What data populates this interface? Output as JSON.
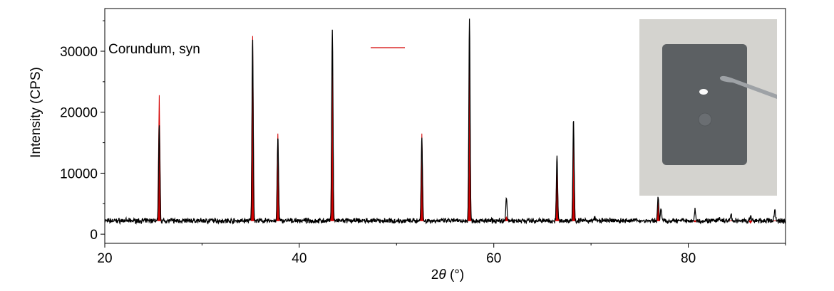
{
  "chart_data": {
    "type": "line",
    "xlabel_prefix": "2",
    "xlabel_symbol": "θ",
    "xlabel_unit": " (°)",
    "ylabel": "Intensity (CPS)",
    "xlim": [
      20,
      90
    ],
    "ylim": [
      -1500,
      37000
    ],
    "x_ticks": [
      20,
      40,
      60,
      80
    ],
    "y_ticks": [
      0,
      10000,
      20000,
      30000
    ],
    "grid": false,
    "legend": {
      "label": "Corundum, syn",
      "color": "#d40000",
      "position": "top-left"
    },
    "baseline": 2200,
    "noise_amplitude": 500,
    "measured_peaks": [
      {
        "x": 25.6,
        "y": 18000
      },
      {
        "x": 35.2,
        "y": 32000
      },
      {
        "x": 37.8,
        "y": 16000
      },
      {
        "x": 43.4,
        "y": 33500
      },
      {
        "x": 52.6,
        "y": 16000
      },
      {
        "x": 57.5,
        "y": 35300
      },
      {
        "x": 61.3,
        "y": 6000
      },
      {
        "x": 66.5,
        "y": 12800
      },
      {
        "x": 68.2,
        "y": 18800
      },
      {
        "x": 70.4,
        "y": 2800
      },
      {
        "x": 74.3,
        "y": 2500
      },
      {
        "x": 76.9,
        "y": 6300
      },
      {
        "x": 77.2,
        "y": 4300
      },
      {
        "x": 80.7,
        "y": 4000
      },
      {
        "x": 83.2,
        "y": 2600
      },
      {
        "x": 84.4,
        "y": 3200
      },
      {
        "x": 86.4,
        "y": 2900
      },
      {
        "x": 88.9,
        "y": 4100
      }
    ],
    "reference_peaks": [
      {
        "x": 25.6,
        "y": 22800
      },
      {
        "x": 35.2,
        "y": 32500
      },
      {
        "x": 37.8,
        "y": 16500
      },
      {
        "x": 43.4,
        "y": 31500
      },
      {
        "x": 52.6,
        "y": 16500
      },
      {
        "x": 57.5,
        "y": 29500
      },
      {
        "x": 61.3,
        "y": 2800
      },
      {
        "x": 66.5,
        "y": 11500
      },
      {
        "x": 68.2,
        "y": 16500
      },
      {
        "x": 76.9,
        "y": 5200
      },
      {
        "x": 80.7,
        "y": 2000
      },
      {
        "x": 84.4,
        "y": 2200
      },
      {
        "x": 86.4,
        "y": 1800
      },
      {
        "x": 88.9,
        "y": 2200
      }
    ]
  },
  "inset_photo": {
    "background_color": "#d4d3cf",
    "plate_color": "#5c6063",
    "tweezer_color": "#9ea2a6"
  }
}
